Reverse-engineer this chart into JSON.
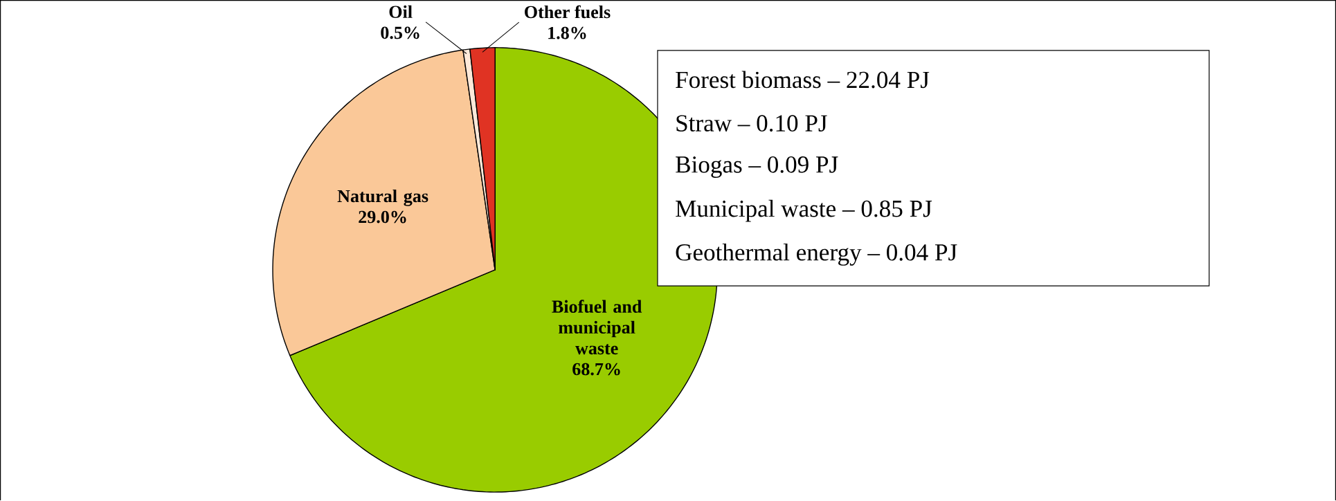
{
  "chart_data": {
    "type": "pie",
    "categories": [
      "Biofuel and municipal waste",
      "Natural gas",
      "Oil",
      "Other fuels"
    ],
    "values": [
      68.7,
      29.0,
      0.5,
      1.8
    ],
    "value_labels": [
      "68.7%",
      "29.0%",
      "0.5%",
      "1.8%"
    ],
    "colors": [
      "#99cc00",
      "#fac898",
      "#fde9d9",
      "#e03323"
    ],
    "annotations": [
      "Forest biomass – 22.04 PJ",
      "Straw – 0.10 PJ",
      "Biogas – 0.09 PJ",
      "Municipal waste – 0.85 PJ",
      "Geothermal energy – 0.04 PJ"
    ]
  }
}
